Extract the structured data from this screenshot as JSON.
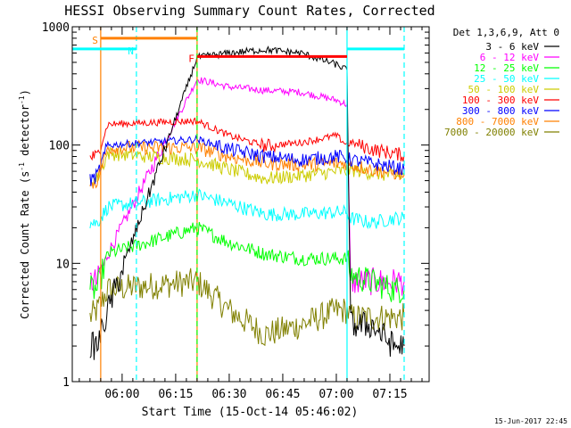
{
  "chart_data": {
    "type": "line",
    "title": "HESSI Observing Summary Count Rates, Corrected",
    "xlabel": "Start Time (15-Oct-14 05:46:02)",
    "ylabel_main": "Corrected Count Rate (s",
    "ylabel_sup1": "-1",
    "ylabel_mid": " detector",
    "ylabel_sup2": "-1",
    "ylabel_end": ")",
    "yscale": "log",
    "ylim": [
      1,
      1000
    ],
    "yticks": [
      {
        "value": 1,
        "label": "1"
      },
      {
        "value": 10,
        "label": "10"
      },
      {
        "value": 100,
        "label": "100"
      },
      {
        "value": 1000,
        "label": "1000"
      }
    ],
    "xlim": [
      "05:46:02",
      "07:26:00"
    ],
    "xticks": [
      {
        "time": "06:00",
        "label": "06:00"
      },
      {
        "time": "06:15",
        "label": "06:15"
      },
      {
        "time": "06:30",
        "label": "06:30"
      },
      {
        "time": "06:45",
        "label": "06:45"
      },
      {
        "time": "07:00",
        "label": "07:00"
      },
      {
        "time": "07:15",
        "label": "07:15"
      }
    ],
    "legend_title": "Det 1,3,6,9, Att 0",
    "legend_position": "right",
    "series": [
      {
        "name": "3 - 6 keV",
        "color": "#000000",
        "points": [
          [
            "05:51",
            2
          ],
          [
            "05:53",
            2
          ],
          [
            "05:56",
            4
          ],
          [
            "06:21",
            550
          ],
          [
            "06:30",
            600
          ],
          [
            "06:40",
            640
          ],
          [
            "06:50",
            600
          ],
          [
            "07:00",
            480
          ],
          [
            "07:03",
            430
          ],
          [
            "07:04",
            3
          ],
          [
            "07:10",
            3
          ],
          [
            "07:16",
            2
          ],
          [
            "07:19",
            2
          ]
        ]
      },
      {
        "name": "6 - 12 keV",
        "color": "#ff00ff",
        "points": [
          [
            "05:51",
            7
          ],
          [
            "05:53",
            7
          ],
          [
            "05:56",
            12
          ],
          [
            "06:21",
            360
          ],
          [
            "06:30",
            310
          ],
          [
            "06:40",
            290
          ],
          [
            "06:50",
            280
          ],
          [
            "07:00",
            240
          ],
          [
            "07:03",
            220
          ],
          [
            "07:04",
            7
          ],
          [
            "07:10",
            7
          ],
          [
            "07:16",
            7
          ],
          [
            "07:19",
            7
          ]
        ]
      },
      {
        "name": "12 - 25 keV",
        "color": "#00ff00",
        "points": [
          [
            "05:51",
            6
          ],
          [
            "05:53",
            6
          ],
          [
            "05:56",
            12
          ],
          [
            "06:21",
            20
          ],
          [
            "06:30",
            15
          ],
          [
            "06:40",
            12
          ],
          [
            "06:50",
            11
          ],
          [
            "07:00",
            11
          ],
          [
            "07:03",
            11
          ],
          [
            "07:04",
            8
          ],
          [
            "07:10",
            7
          ],
          [
            "07:16",
            6
          ],
          [
            "07:19",
            6
          ]
        ]
      },
      {
        "name": "25 - 50 keV",
        "color": "#00ffff",
        "points": [
          [
            "05:51",
            22
          ],
          [
            "05:53",
            22
          ],
          [
            "05:56",
            30
          ],
          [
            "06:21",
            38
          ],
          [
            "06:30",
            32
          ],
          [
            "06:40",
            26
          ],
          [
            "06:50",
            26
          ],
          [
            "07:00",
            27
          ],
          [
            "07:03",
            27
          ],
          [
            "07:04",
            24
          ],
          [
            "07:10",
            22
          ],
          [
            "07:16",
            24
          ],
          [
            "07:19",
            24
          ]
        ]
      },
      {
        "name": "50 - 100 keV",
        "color": "#cccc00",
        "points": [
          [
            "05:51",
            50
          ],
          [
            "05:53",
            52
          ],
          [
            "05:56",
            85
          ],
          [
            "06:21",
            75
          ],
          [
            "06:30",
            62
          ],
          [
            "06:40",
            52
          ],
          [
            "06:50",
            55
          ],
          [
            "07:00",
            60
          ],
          [
            "07:03",
            60
          ],
          [
            "07:04",
            62
          ],
          [
            "07:10",
            58
          ],
          [
            "07:16",
            55
          ],
          [
            "07:19",
            55
          ]
        ]
      },
      {
        "name": "100 - 300 keV",
        "color": "#ff0000",
        "points": [
          [
            "05:51",
            80
          ],
          [
            "05:53",
            80
          ],
          [
            "05:56",
            150
          ],
          [
            "06:21",
            160
          ],
          [
            "06:30",
            120
          ],
          [
            "06:40",
            98
          ],
          [
            "06:50",
            105
          ],
          [
            "07:00",
            120
          ],
          [
            "07:03",
            100
          ],
          [
            "07:04",
            105
          ],
          [
            "07:10",
            92
          ],
          [
            "07:16",
            85
          ],
          [
            "07:19",
            82
          ]
        ]
      },
      {
        "name": "300 - 800 keV",
        "color": "#0000ff",
        "points": [
          [
            "05:51",
            50
          ],
          [
            "05:53",
            55
          ],
          [
            "05:56",
            100
          ],
          [
            "06:21",
            112
          ],
          [
            "06:30",
            92
          ],
          [
            "06:40",
            80
          ],
          [
            "06:50",
            75
          ],
          [
            "07:00",
            80
          ],
          [
            "07:03",
            78
          ],
          [
            "07:04",
            75
          ],
          [
            "07:10",
            70
          ],
          [
            "07:16",
            65
          ],
          [
            "07:19",
            62
          ]
        ]
      },
      {
        "name": "800 - 7000 keV",
        "color": "#ff8000",
        "points": [
          [
            "05:51",
            45
          ],
          [
            "05:53",
            50
          ],
          [
            "05:56",
            95
          ],
          [
            "06:21",
            95
          ],
          [
            "06:30",
            80
          ],
          [
            "06:40",
            70
          ],
          [
            "06:50",
            68
          ],
          [
            "07:00",
            70
          ],
          [
            "07:03",
            70
          ],
          [
            "07:04",
            68
          ],
          [
            "07:10",
            62
          ],
          [
            "07:16",
            58
          ],
          [
            "07:19",
            56
          ]
        ]
      },
      {
        "name": "7000 - 20000 keV",
        "color": "#808000",
        "points": [
          [
            "05:51",
            3.5
          ],
          [
            "05:53",
            4
          ],
          [
            "05:56",
            6
          ],
          [
            "06:21",
            7
          ],
          [
            "06:30",
            4
          ],
          [
            "06:40",
            2.5
          ],
          [
            "06:50",
            3
          ],
          [
            "07:00",
            4
          ],
          [
            "07:03",
            4
          ],
          [
            "07:04",
            3.5
          ],
          [
            "07:10",
            3.5
          ],
          [
            "07:16",
            3.5
          ],
          [
            "07:19",
            3.5
          ]
        ]
      }
    ],
    "annotations": [
      {
        "label": "S",
        "color": "#ff8000",
        "time": "05:54",
        "y": 800,
        "bar_end": "06:21"
      },
      {
        "label": "N",
        "color": "#00ffff",
        "time": "06:04",
        "y": 650,
        "bar_start": "05:46:02",
        "bar_end": "06:04"
      },
      {
        "label": "F",
        "color": "#ff0000",
        "time": "06:21",
        "y": 560,
        "bar_end": "07:03"
      },
      {
        "label": "",
        "color": "#00ffff",
        "time": "07:03",
        "y": 650,
        "bar_end": "07:19"
      }
    ],
    "vlines": [
      {
        "time": "05:54",
        "color": "#ff8000",
        "style": "solid"
      },
      {
        "time": "06:04",
        "color": "#00ffff",
        "style": "dashed"
      },
      {
        "time": "06:21",
        "color": "#ff8000",
        "style": "solid"
      },
      {
        "time": "06:21",
        "color": "#00ff00",
        "style": "dashed"
      },
      {
        "time": "07:03",
        "color": "#00ffff",
        "style": "solid"
      },
      {
        "time": "07:19",
        "color": "#00ffff",
        "style": "dashed"
      }
    ],
    "footer": "15-Jun-2017 22:45"
  }
}
